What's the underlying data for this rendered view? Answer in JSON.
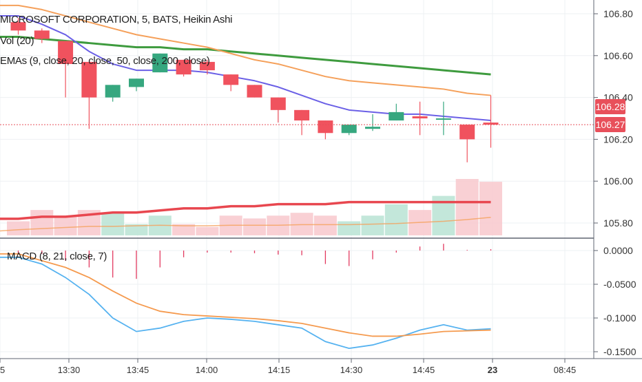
{
  "legend": {
    "symbol": "MICROSOFT CORPORATION, 5, BATS, Heikin Ashi",
    "volume": "Vol (20)",
    "emas": "EMAs (9, close, 20, close, 50, close, 200, close)",
    "macd": "MACD (8, 21, close, 7)"
  },
  "price_axis": {
    "ticks": [
      "106.80",
      "106.60",
      "106.40",
      "106.20",
      "106.00",
      "105.80"
    ],
    "badges": [
      {
        "label": "106.28",
        "color": "#e8505b"
      },
      {
        "label": "106.27",
        "color": "#e8505b"
      }
    ]
  },
  "macd_axis": {
    "ticks": [
      "0.0000",
      "-0.0500",
      "-0.1000",
      "-0.1500"
    ]
  },
  "time_axis": {
    "ticks": [
      "5",
      "13:30",
      "13:45",
      "14:00",
      "14:15",
      "14:30",
      "14:45",
      "23",
      "08:45"
    ]
  },
  "colors": {
    "up": "#36a77f",
    "down": "#f0525e",
    "ema_fast": "#6a5fe6",
    "ema_mid": "#f5a05a",
    "ema_slow": "#3e9b3e",
    "ema_200": "#e8474f",
    "macd_line": "#55b2f0",
    "signal_line": "#f59a4e"
  },
  "chart_data": [
    {
      "type": "candlestick",
      "title": "MICROSOFT CORPORATION, 5, BATS, Heikin Ashi",
      "x": [
        "13:15",
        "13:20",
        "13:25",
        "13:30",
        "13:35",
        "13:40",
        "13:45",
        "13:50",
        "13:55",
        "14:00",
        "14:05",
        "14:10",
        "14:15",
        "14:20",
        "14:25",
        "14:30",
        "14:35",
        "14:40",
        "14:45",
        "14:50",
        "14:55"
      ],
      "open": [
        106.76,
        106.72,
        106.67,
        106.57,
        106.4,
        106.45,
        106.52,
        106.58,
        106.57,
        106.51,
        106.46,
        106.4,
        106.34,
        106.29,
        106.23,
        106.25,
        106.29,
        106.31,
        106.3,
        106.27,
        106.28
      ],
      "close": [
        106.72,
        106.68,
        106.56,
        106.4,
        106.46,
        106.49,
        106.61,
        106.51,
        106.53,
        106.46,
        106.4,
        106.34,
        106.29,
        106.23,
        106.27,
        106.26,
        106.33,
        106.3,
        106.3,
        106.2,
        106.27
      ],
      "high": [
        106.78,
        106.73,
        106.67,
        106.57,
        106.46,
        106.49,
        106.61,
        106.58,
        106.58,
        106.51,
        106.46,
        106.4,
        106.34,
        106.29,
        106.27,
        106.32,
        106.37,
        106.38,
        106.38,
        106.27,
        106.41
      ],
      "low": [
        106.7,
        106.66,
        106.4,
        106.25,
        106.38,
        106.43,
        106.52,
        106.5,
        106.51,
        106.43,
        106.4,
        106.28,
        106.22,
        106.2,
        106.22,
        106.24,
        106.29,
        106.22,
        106.22,
        106.09,
        106.16
      ],
      "ylim": [
        105.74,
        106.86
      ],
      "ema_9": [
        106.79,
        106.75,
        106.7,
        106.62,
        106.56,
        106.53,
        106.53,
        106.53,
        106.52,
        106.5,
        106.48,
        106.45,
        106.41,
        106.37,
        106.34,
        106.33,
        106.32,
        106.32,
        106.31,
        106.3,
        106.29
      ],
      "ema_20": [
        106.84,
        106.82,
        106.79,
        106.76,
        106.73,
        106.7,
        106.68,
        106.66,
        106.64,
        106.61,
        106.58,
        106.56,
        106.53,
        106.5,
        106.48,
        106.47,
        106.46,
        106.45,
        106.44,
        106.42,
        106.41
      ],
      "ema_50": [
        106.69,
        106.68,
        106.67,
        106.66,
        106.65,
        106.64,
        106.64,
        106.63,
        106.63,
        106.62,
        106.61,
        106.6,
        106.59,
        106.58,
        106.57,
        106.56,
        106.55,
        106.54,
        106.53,
        106.52,
        106.51
      ],
      "ema_200": [
        105.82,
        105.83,
        105.83,
        105.84,
        105.85,
        105.85,
        105.86,
        105.87,
        105.87,
        105.88,
        105.88,
        105.89,
        105.89,
        105.89,
        105.9,
        105.9,
        105.9,
        105.9,
        105.9,
        105.9,
        105.9
      ],
      "volume_ratio": [
        0.25,
        0.45,
        0.35,
        0.45,
        0.4,
        0.2,
        0.35,
        0.2,
        0.15,
        0.35,
        0.3,
        0.35,
        0.4,
        0.35,
        0.25,
        0.35,
        0.55,
        0.45,
        0.7,
        1.0,
        0.95
      ],
      "volume_ma_ratio": [
        0.1,
        0.12,
        0.14,
        0.16,
        0.16,
        0.17,
        0.18,
        0.17,
        0.17,
        0.18,
        0.18,
        0.18,
        0.19,
        0.19,
        0.19,
        0.2,
        0.21,
        0.23,
        0.25,
        0.28,
        0.32
      ],
      "last_price": 106.27
    },
    {
      "type": "line",
      "title": "MACD (8, 21, close, 7)",
      "x": [
        "13:15",
        "13:20",
        "13:25",
        "13:30",
        "13:35",
        "13:40",
        "13:45",
        "13:50",
        "13:55",
        "14:00",
        "14:05",
        "14:10",
        "14:15",
        "14:20",
        "14:25",
        "14:30",
        "14:35",
        "14:40",
        "14:45",
        "14:50",
        "14:55"
      ],
      "series": [
        {
          "values": [
            -0.01,
            -0.02,
            -0.04,
            -0.065,
            -0.1,
            -0.12,
            -0.115,
            -0.105,
            -0.1,
            -0.102,
            -0.105,
            -0.11,
            -0.115,
            -0.135,
            -0.145,
            -0.14,
            -0.13,
            -0.118,
            -0.11,
            -0.118,
            -0.116
          ]
        },
        {
          "values": [
            -0.005,
            -0.015,
            -0.025,
            -0.04,
            -0.06,
            -0.078,
            -0.09,
            -0.095,
            -0.097,
            -0.099,
            -0.101,
            -0.104,
            -0.108,
            -0.115,
            -0.122,
            -0.127,
            -0.127,
            -0.124,
            -0.12,
            -0.119,
            -0.118
          ]
        }
      ],
      "histogram": [
        -0.005,
        -0.005,
        -0.015,
        -0.025,
        -0.04,
        -0.042,
        -0.025,
        -0.01,
        -0.003,
        -0.003,
        -0.004,
        -0.006,
        -0.007,
        -0.02,
        -0.023,
        -0.013,
        -0.003,
        0.006,
        0.01,
        0.001,
        0.002
      ],
      "ylim": [
        -0.158,
        0.012
      ]
    }
  ]
}
